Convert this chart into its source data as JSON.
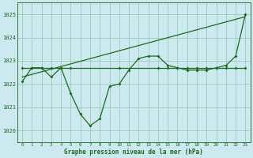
{
  "background_color": "#cce9f0",
  "grid_color": "#99ccbb",
  "line_color": "#1a6b1a",
  "xlabel": "Graphe pression niveau de la mer (hPa)",
  "xlim": [
    -0.5,
    23.5
  ],
  "ylim": [
    1019.5,
    1025.5
  ],
  "yticks": [
    1020,
    1021,
    1022,
    1023,
    1024,
    1025
  ],
  "xticks": [
    0,
    1,
    2,
    3,
    4,
    5,
    6,
    7,
    8,
    9,
    10,
    11,
    12,
    13,
    14,
    15,
    16,
    17,
    18,
    19,
    20,
    21,
    22,
    23
  ],
  "series1_x": [
    0,
    1,
    2,
    3,
    4,
    5,
    6,
    7,
    8,
    9,
    10,
    11,
    12,
    13,
    14,
    15,
    16,
    17,
    18,
    19,
    20,
    21,
    22,
    23
  ],
  "series1_y": [
    1022.1,
    1022.7,
    1022.7,
    1022.3,
    1022.7,
    1021.6,
    1020.7,
    1020.2,
    1020.5,
    1021.9,
    1022.0,
    1022.6,
    1023.1,
    1023.2,
    1023.2,
    1022.8,
    1022.7,
    1022.6,
    1022.6,
    1022.6,
    1022.7,
    1022.8,
    1023.2,
    1025.0
  ],
  "series2_x": [
    0,
    1,
    2,
    3,
    4,
    5,
    10,
    14,
    15,
    16,
    17,
    18,
    19,
    20,
    21,
    22,
    23
  ],
  "series2_y": [
    1022.7,
    1022.7,
    1022.7,
    1022.7,
    1022.7,
    1022.7,
    1022.7,
    1022.7,
    1022.7,
    1022.7,
    1022.7,
    1022.7,
    1022.7,
    1022.7,
    1022.7,
    1022.7,
    1022.7
  ],
  "series3_x": [
    0,
    23
  ],
  "series3_y": [
    1022.3,
    1024.9
  ]
}
